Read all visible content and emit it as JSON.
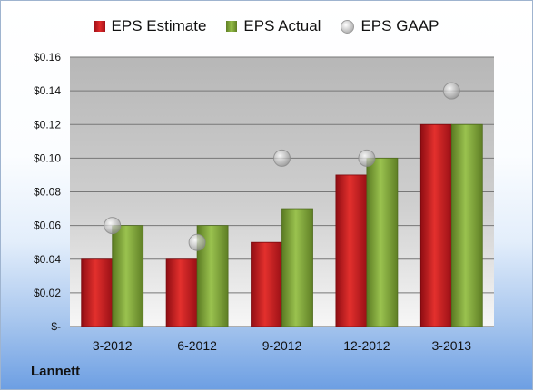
{
  "chart_data": {
    "type": "bar",
    "title": "",
    "xlabel": "",
    "ylabel": "",
    "categories": [
      "3-2012",
      "6-2012",
      "9-2012",
      "12-2012",
      "3-2013"
    ],
    "series": [
      {
        "name": "EPS Estimate",
        "type": "bar",
        "color": "#c0181e",
        "values": [
          0.04,
          0.04,
          0.05,
          0.09,
          0.12
        ]
      },
      {
        "name": "EPS Actual",
        "type": "bar",
        "color": "#7ea23a",
        "values": [
          0.06,
          0.06,
          0.07,
          0.1,
          0.12
        ]
      },
      {
        "name": "EPS GAAP",
        "type": "scatter",
        "color": "#b0b0b0",
        "values": [
          0.06,
          0.05,
          0.1,
          0.1,
          0.14
        ]
      }
    ],
    "ylim": [
      0,
      0.16
    ],
    "yticks": [
      {
        "value": 0.0,
        "label": "$-"
      },
      {
        "value": 0.02,
        "label": "$0.02"
      },
      {
        "value": 0.04,
        "label": "$0.04"
      },
      {
        "value": 0.06,
        "label": "$0.06"
      },
      {
        "value": 0.08,
        "label": "$0.08"
      },
      {
        "value": 0.1,
        "label": "$0.10"
      },
      {
        "value": 0.12,
        "label": "$0.12"
      },
      {
        "value": 0.14,
        "label": "$0.14"
      },
      {
        "value": 0.16,
        "label": "$0.16"
      }
    ],
    "grid": true,
    "legend": "top"
  },
  "footer": {
    "company": "Lannett"
  }
}
